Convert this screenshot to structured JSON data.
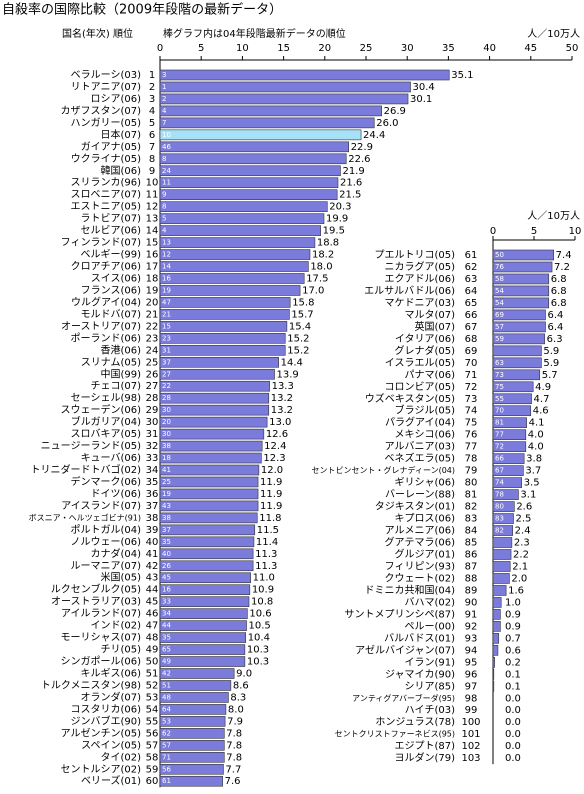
{
  "chart_data": [
    {
      "type": "bar",
      "title": "自殺率の国際比較（2009年段階の最新データ）",
      "header_left": "国名(年次) 順位",
      "note": "棒グラフ内は04年段階最新データの順位",
      "unit": "人／10万人",
      "color": "#7b7bdc",
      "highlight_color": "#a8e0f8",
      "highlight_category": "日本(07)",
      "xlim": [
        0,
        50
      ],
      "xticks": [
        0,
        5,
        10,
        15,
        20,
        25,
        30,
        35,
        40,
        45,
        50
      ],
      "categories": [
        "ベラルーシ(03)",
        "リトアニア(07)",
        "ロシア(06)",
        "カザフスタン(07)",
        "ハンガリー(05)",
        "日本(07)",
        "ガイアナ(05)",
        "ウクライナ(05)",
        "韓国(06)",
        "スリランカ(96)",
        "スロベニア(07)",
        "エストニア(05)",
        "ラトビア(07)",
        "セルビア(06)",
        "フィンランド(07)",
        "ベルギー(99)",
        "クロアチア(06)",
        "スイス(06)",
        "フランス(06)",
        "ウルグアイ(04)",
        "モルドバ(07)",
        "オーストリア(07)",
        "ポーランド(06)",
        "香港(06)",
        "スリナム(05)",
        "中国(99)",
        "チェコ(07)",
        "セーシェル(98)",
        "スウェーデン(06)",
        "ブルガリア(04)",
        "スロバキア(05)",
        "ニュージーランド(05)",
        "キューバ(06)",
        "トリニダードトバゴ(02)",
        "デンマーク(06)",
        "ドイツ(06)",
        "アイスランド(07)",
        "ボスニア・ヘルツェゴビナ(91)",
        "ポルトガル(04)",
        "ノルウェー(06)",
        "カナダ(04)",
        "ルーマニア(07)",
        "米国(05)",
        "ルクセンブルク(05)",
        "オーストラリア(03)",
        "アイルランド(07)",
        "インド(02)",
        "モーリシャス(07)",
        "チリ(05)",
        "シンガポール(06)",
        "キルギス(06)",
        "トルクメニスタン(98)",
        "オランダ(07)",
        "コスタリカ(06)",
        "ジンバブエ(90)",
        "アルゼンチン(05)",
        "スペイン(05)",
        "タイ(02)",
        "セントルシア(02)",
        "ベリーズ(01)"
      ],
      "ranks": [
        1,
        2,
        3,
        4,
        5,
        6,
        7,
        8,
        9,
        10,
        11,
        12,
        13,
        14,
        15,
        16,
        17,
        18,
        19,
        20,
        21,
        22,
        23,
        24,
        25,
        26,
        27,
        28,
        29,
        30,
        31,
        32,
        33,
        34,
        35,
        36,
        37,
        38,
        39,
        40,
        41,
        42,
        43,
        44,
        45,
        46,
        47,
        48,
        49,
        50,
        51,
        52,
        53,
        54,
        55,
        56,
        57,
        58,
        59,
        60
      ],
      "prev_ranks": [
        3,
        1,
        2,
        4,
        7,
        10,
        46,
        8,
        24,
        11,
        9,
        8,
        5,
        4,
        13,
        12,
        14,
        16,
        19,
        47,
        21,
        15,
        23,
        31,
        37,
        27,
        22,
        28,
        30,
        20,
        30,
        38,
        18,
        41,
        25,
        19,
        43,
        38,
        37,
        35,
        40,
        26,
        45,
        16,
        33,
        34,
        44,
        35,
        65,
        49,
        42,
        51,
        48,
        64,
        53,
        62,
        57,
        71,
        56,
        61
      ],
      "values": [
        35.1,
        30.4,
        30.1,
        26.9,
        26,
        24.4,
        22.9,
        22.6,
        21.9,
        21.6,
        21.5,
        20.3,
        19.9,
        19.5,
        18.8,
        18.2,
        18,
        17.5,
        17,
        15.8,
        15.7,
        15.4,
        15.2,
        15.2,
        14.4,
        13.9,
        13.3,
        13.2,
        13.2,
        13,
        12.6,
        12.4,
        12.3,
        12,
        11.9,
        11.9,
        11.9,
        11.8,
        11.5,
        11.4,
        11.3,
        11.3,
        11,
        10.9,
        10.8,
        10.6,
        10.5,
        10.4,
        10.3,
        10.3,
        9,
        8.6,
        8.3,
        8,
        7.9,
        7.8,
        7.8,
        7.8,
        7.7,
        7.6
      ],
      "value_labels": [
        "35.1",
        "30.4",
        "30.1",
        "26.9",
        "26.0",
        "24.4",
        "22.9",
        "22.6",
        "21.9",
        "21.6",
        "21.5",
        "20.3",
        "19.9",
        "19.5",
        "18.8",
        "18.2",
        "18.0",
        "17.5",
        "17.0",
        "15.8",
        "15.7",
        "15.4",
        "15.2",
        "15.2",
        "14.4",
        "13.9",
        "13.3",
        "13.2",
        "13.2",
        "13.0",
        "12.6",
        "12.4",
        "12.3",
        "12.0",
        "11.9",
        "11.9",
        "11.9",
        "11.8",
        "11.5",
        "11.4",
        "11.3",
        "11.3",
        "11.0",
        "10.9",
        "10.8",
        "10.6",
        "10.5",
        "10.4",
        "10.3",
        "10.3",
        "9.0",
        "8.6",
        "8.3",
        "8.0",
        "7.9",
        "7.8",
        "7.8",
        "7.8",
        "7.7",
        "7.6"
      ]
    },
    {
      "type": "bar",
      "unit": "人／10万人",
      "color": "#7b7bdc",
      "xlim": [
        0,
        10
      ],
      "xticks": [
        0,
        5,
        10
      ],
      "categories": [
        "プエルトリコ(05)",
        "ニカラグア(05)",
        "エクアドル(06)",
        "エルサルバドル(06)",
        "マケドニア(03)",
        "マルタ(07)",
        "英国(07)",
        "イタリア(06)",
        "グレナダ(05)",
        "イスラエル(05)",
        "パナマ(06)",
        "コロンビア(05)",
        "ウズベキスタン(05)",
        "ブラジル(05)",
        "パラグアイ(04)",
        "メキシコ(06)",
        "アルバニア(03)",
        "ベネズエラ(05)",
        "セントビンセント・グレナディーン(04)",
        "ギリシャ(06)",
        "バーレーン(88)",
        "タジキスタン(01)",
        "キプロス(06)",
        "アルメニア(06)",
        "グアテマラ(06)",
        "グルジア(01)",
        "フィリピン(93)",
        "クウェート(02)",
        "ドミニカ共和国(04)",
        "バハマ(02)",
        "サントメプリンシペ(87)",
        "ペルー(00)",
        "バルバドス(01)",
        "アゼルバイジャン(07)",
        "イラン(91)",
        "ジャマイカ(90)",
        "シリア(85)",
        "アンティグアバーブーダ(95)",
        "ハイチ(03)",
        "ホンジュラス(78)",
        "セントクリストファーネビス(95)",
        "エジプト(87)",
        "ヨルダン(79)"
      ],
      "ranks": [
        61,
        62,
        63,
        64,
        65,
        66,
        67,
        68,
        69,
        70,
        71,
        72,
        73,
        74,
        75,
        76,
        77,
        78,
        79,
        80,
        81,
        82,
        83,
        84,
        85,
        86,
        87,
        88,
        89,
        90,
        91,
        92,
        93,
        94,
        95,
        96,
        97,
        98,
        99,
        100,
        101,
        102,
        103
      ],
      "prev_ranks": [
        50,
        76,
        58,
        54,
        54,
        69,
        57,
        59,
        null,
        63,
        73,
        75,
        55,
        70,
        81,
        77,
        72,
        66,
        67,
        74,
        78,
        80,
        83,
        82,
        null,
        null,
        null,
        null,
        null,
        null,
        null,
        null,
        null,
        null,
        null,
        null,
        null,
        null,
        null,
        null,
        null,
        null,
        null
      ],
      "values": [
        7.4,
        7.2,
        6.8,
        6.8,
        6.8,
        6.4,
        6.4,
        6.3,
        5.9,
        5.9,
        5.7,
        4.9,
        4.7,
        4.6,
        4.1,
        4,
        4,
        3.8,
        3.7,
        3.5,
        3.1,
        2.6,
        2.5,
        2.4,
        2.3,
        2.2,
        2.1,
        2,
        1.6,
        1,
        0.9,
        0.9,
        0.7,
        0.6,
        0.2,
        0.1,
        0.1,
        0,
        0,
        0,
        0,
        0,
        0
      ],
      "value_labels": [
        "7.4",
        "7.2",
        "6.8",
        "6.8",
        "6.8",
        "6.4",
        "6.4",
        "6.3",
        "5.9",
        "5.9",
        "5.7",
        "4.9",
        "4.7",
        "4.6",
        "4.1",
        "4.0",
        "4.0",
        "3.8",
        "3.7",
        "3.5",
        "3.1",
        "2.6",
        "2.5",
        "2.4",
        "2.3",
        "2.2",
        "2.1",
        "2.0",
        "1.6",
        "1.0",
        "0.9",
        "0.9",
        "0.7",
        "0.6",
        "0.2",
        "0.1",
        "0.1",
        "0.0",
        "0.0",
        "0.0",
        "0.0",
        "0.0",
        "0.0"
      ]
    }
  ]
}
